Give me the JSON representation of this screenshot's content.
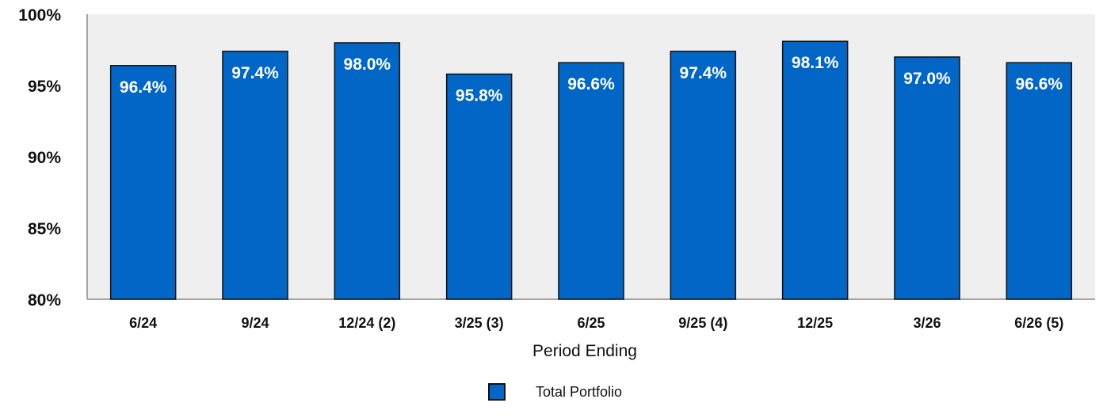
{
  "chart_data": {
    "type": "bar",
    "xlabel": "Period Ending",
    "ylabel": "",
    "ylim": [
      80,
      100
    ],
    "yticks": [
      {
        "value": 80,
        "label": "80%"
      },
      {
        "value": 85,
        "label": "85%"
      },
      {
        "value": 90,
        "label": "90%"
      },
      {
        "value": 95,
        "label": "95%"
      },
      {
        "value": 100,
        "label": "100%"
      }
    ],
    "categories": [
      "6/24",
      "9/24",
      "12/24 (2)",
      "3/25 (3)",
      "6/25",
      "9/25 (4)",
      "12/25",
      "3/26",
      "6/26 (5)"
    ],
    "series": [
      {
        "name": "Total Portfolio",
        "values": [
          96.4,
          97.4,
          98.0,
          95.8,
          96.6,
          97.4,
          98.1,
          97.0,
          96.6
        ],
        "labels": [
          "96.4%",
          "97.4%",
          "98.0%",
          "95.8%",
          "96.6%",
          "97.4%",
          "98.1%",
          "97.0%",
          "96.6%"
        ]
      }
    ],
    "legend_position": "bottom",
    "grid": false,
    "colors": {
      "bar": "#0166C5",
      "plot_background": "#EFEFEF",
      "axis": "#888888",
      "text": "#111111",
      "data_label": "#FFFFFF"
    }
  }
}
